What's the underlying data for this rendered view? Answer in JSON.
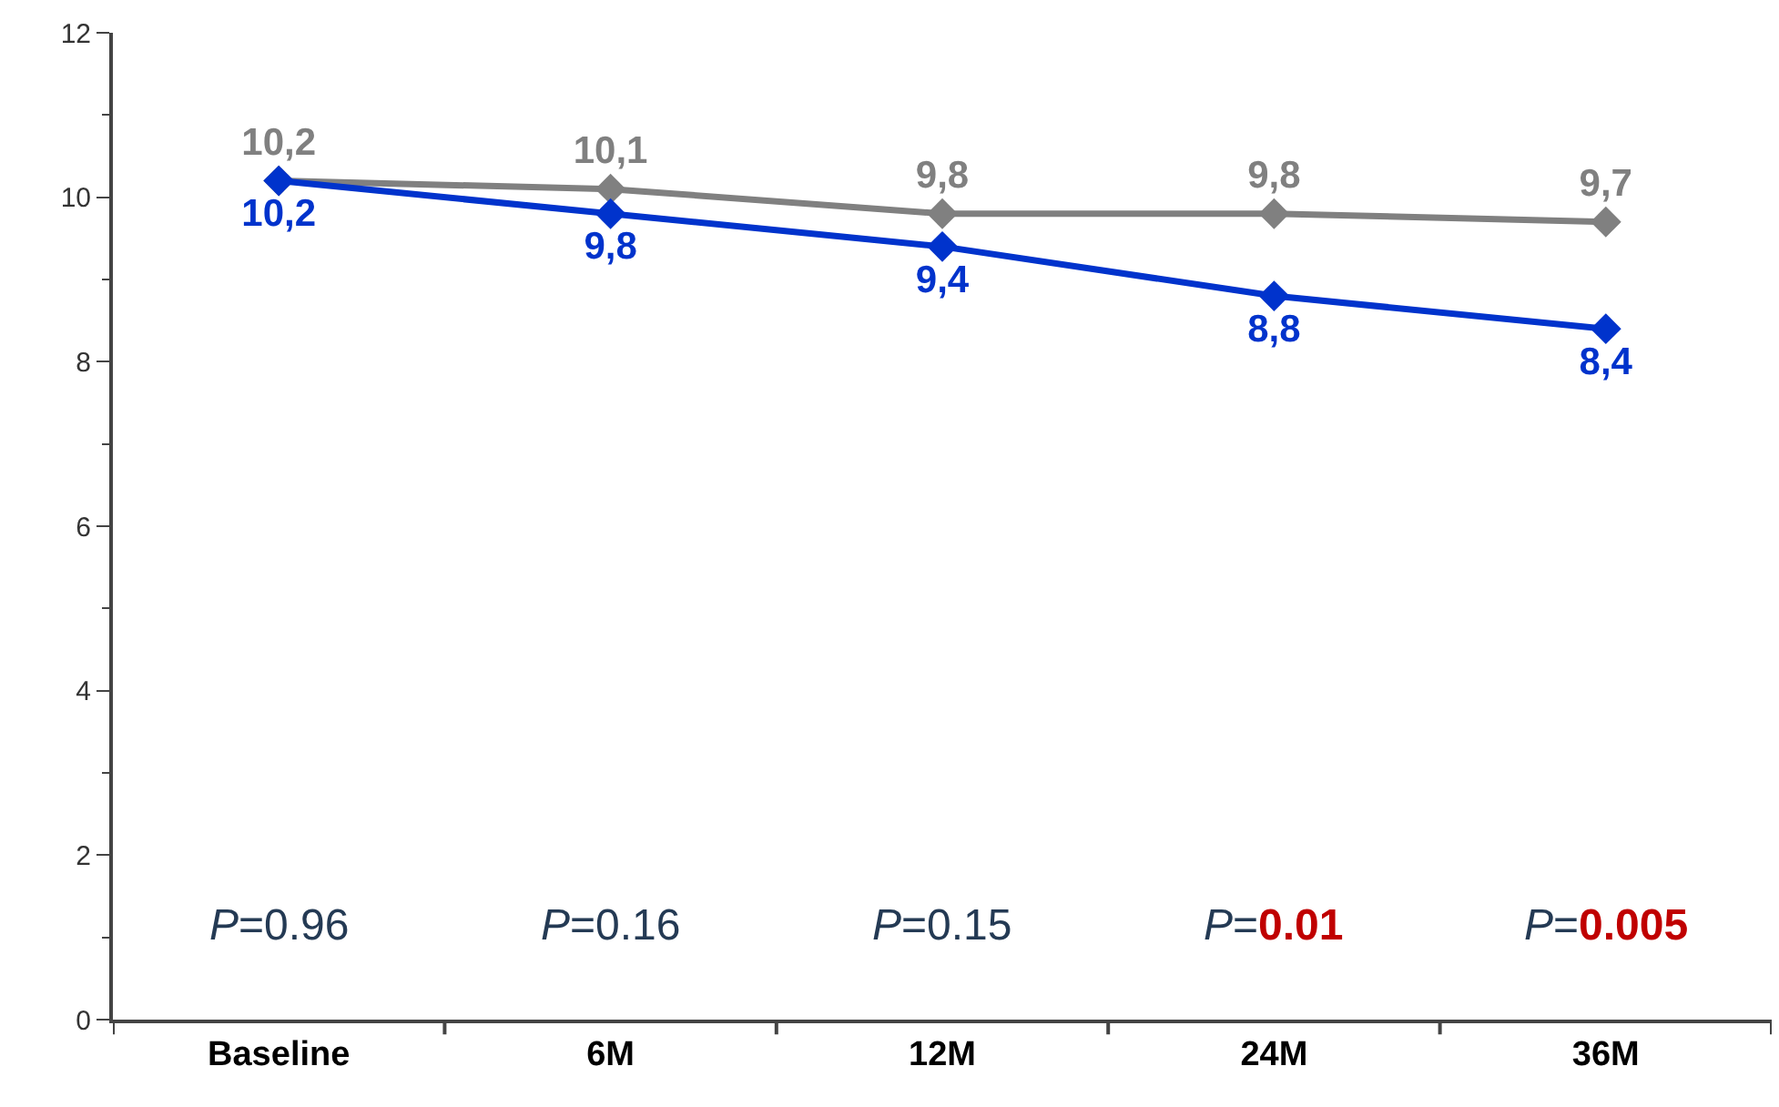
{
  "chart_data": {
    "type": "line",
    "categories": [
      "Baseline",
      "6M",
      "12M",
      "24M",
      "36M"
    ],
    "series": [
      {
        "color": "#808080",
        "values": [
          10.2,
          10.1,
          9.8,
          9.8,
          9.7
        ],
        "value_labels": [
          "10,2",
          "10,1",
          "9,8",
          "9,8",
          "9,7"
        ]
      },
      {
        "color": "#0033cc",
        "values": [
          10.2,
          9.8,
          9.4,
          8.8,
          8.4
        ],
        "value_labels": [
          "10,2",
          "9,8",
          "9,4",
          "8,8",
          "8,4"
        ]
      }
    ],
    "ylim": [
      0,
      12
    ],
    "yticks": [
      0,
      2,
      4,
      6,
      8,
      10,
      12
    ],
    "marker": "diamond",
    "line_style": "solid",
    "legend": false,
    "annotations": [
      "P=0.96",
      "P=0.16",
      "P=0.15",
      "P=0.01",
      "P=0.005"
    ]
  }
}
